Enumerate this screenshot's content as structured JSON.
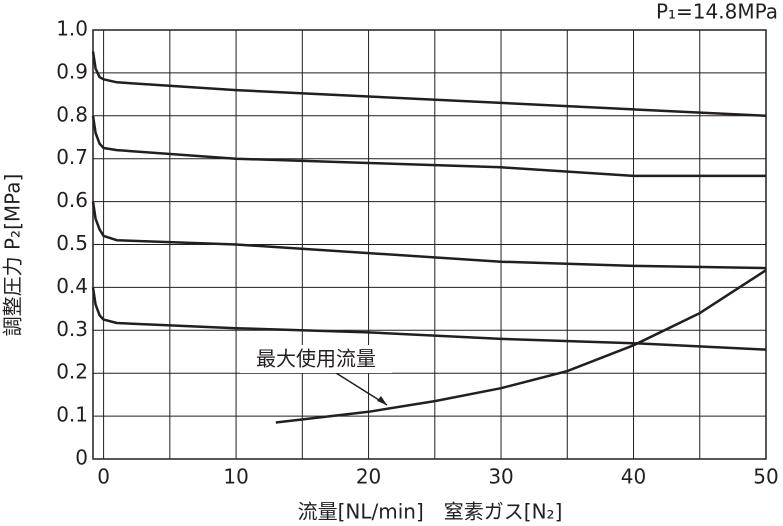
{
  "chart_data": {
    "type": "line",
    "corner_label": "P₁=14.8MPa",
    "xlabel": "流量[NL/min]　窒素ガス[N₂]",
    "ylabel": "調整圧力 P₂[MPa]",
    "annotation": "最大使用流量",
    "xlim": [
      -0.8,
      50
    ],
    "ylim": [
      0,
      1.0
    ],
    "xticks": [
      0,
      10,
      20,
      30,
      40,
      50
    ],
    "x_minor_grid": [
      5,
      15,
      25,
      35,
      45
    ],
    "yticks": [
      0,
      0.1,
      0.2,
      0.3,
      0.4,
      0.5,
      0.6,
      0.7,
      0.8,
      0.9,
      {
        "value": 1.0,
        "label": "1.0"
      }
    ],
    "grid": true,
    "series": [
      {
        "color": "#231f20",
        "x": [
          -0.8,
          -0.6,
          -0.3,
          0,
          1,
          10,
          20,
          30,
          40,
          50
        ],
        "values": [
          0.95,
          0.91,
          0.89,
          0.885,
          0.878,
          0.86,
          0.845,
          0.83,
          0.815,
          0.8
        ]
      },
      {
        "color": "#231f20",
        "x": [
          -0.8,
          -0.6,
          -0.3,
          0,
          1,
          10,
          20,
          30,
          40,
          50
        ],
        "values": [
          0.8,
          0.76,
          0.735,
          0.725,
          0.72,
          0.7,
          0.69,
          0.68,
          0.66,
          0.66
        ]
      },
      {
        "color": "#231f20",
        "x": [
          -0.8,
          -0.6,
          -0.3,
          0,
          1,
          10,
          20,
          30,
          40,
          50
        ],
        "values": [
          0.6,
          0.56,
          0.535,
          0.52,
          0.51,
          0.5,
          0.48,
          0.46,
          0.45,
          0.445
        ]
      },
      {
        "color": "#231f20",
        "x": [
          -0.8,
          -0.6,
          -0.3,
          0,
          1,
          10,
          20,
          30,
          40,
          50
        ],
        "values": [
          0.4,
          0.36,
          0.335,
          0.325,
          0.317,
          0.305,
          0.295,
          0.28,
          0.27,
          0.255
        ]
      },
      {
        "color": "#231f20",
        "x": [
          13,
          20,
          25,
          30,
          35,
          40,
          45,
          50
        ],
        "values": [
          0.085,
          0.11,
          0.135,
          0.165,
          0.205,
          0.265,
          0.34,
          0.44
        ]
      }
    ]
  }
}
